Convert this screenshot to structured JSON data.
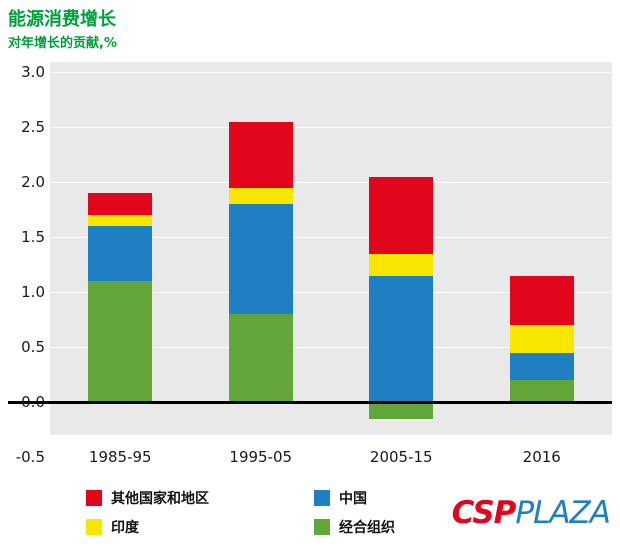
{
  "header": {
    "title": "能源消费增长",
    "subtitle": "对年增长的贡献,%",
    "title_color": "#009f3c"
  },
  "chart_data": {
    "type": "bar",
    "stacked": true,
    "title": "能源消费增长",
    "subtitle": "对年增长的贡献,%",
    "categories": [
      "1985-95",
      "1995-05",
      "2005-15",
      "2016"
    ],
    "series": [
      {
        "name": "经合组织",
        "color": "#62a639",
        "values": [
          1.1,
          0.8,
          -0.15,
          0.2
        ]
      },
      {
        "name": "中国",
        "color": "#1e7fc2",
        "values": [
          0.5,
          1.0,
          1.15,
          0.25
        ]
      },
      {
        "name": "印度",
        "color": "#f7e600",
        "values": [
          0.1,
          0.15,
          0.2,
          0.25
        ]
      },
      {
        "name": "其他国家和地区",
        "color": "#e2061c",
        "values": [
          0.2,
          0.6,
          0.7,
          0.45
        ]
      }
    ],
    "ylim": [
      -0.5,
      3.0
    ],
    "ytick_step": 0.5,
    "yticks": [
      "3.0",
      "2.5",
      "2.0",
      "1.5",
      "1.0",
      "0.5",
      "0.0",
      "-0.5"
    ],
    "grid": true,
    "legend_position": "bottom",
    "plot_bg": "#e9e9e9",
    "zero_line_color": "#000000"
  },
  "legend": {
    "items": [
      {
        "label": "其他国家和地区",
        "color": "#e2061c"
      },
      {
        "label": "中国",
        "color": "#1e7fc2"
      },
      {
        "label": "印度",
        "color": "#f7e600"
      },
      {
        "label": "经合组织",
        "color": "#62a639"
      }
    ]
  },
  "watermark": {
    "csp": "CSP",
    "plaza": "PLAZA",
    "csp_color": "#e2061c",
    "plaza_color": "#1e7fc2"
  }
}
